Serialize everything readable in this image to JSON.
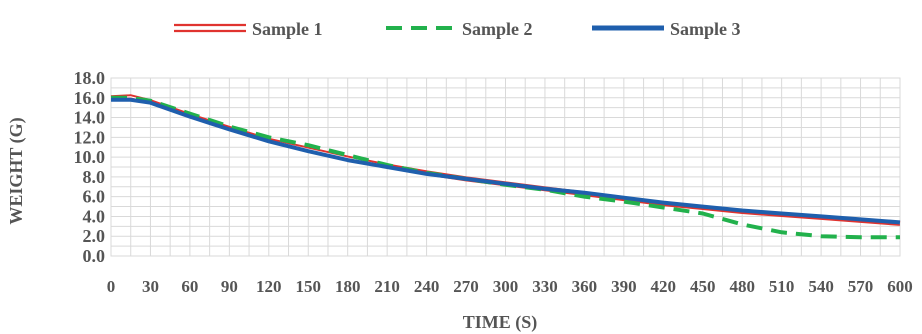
{
  "chart_data": {
    "type": "line",
    "title": "",
    "xlabel": "TIME (S)",
    "ylabel": "WEIGHT (G)",
    "x": [
      0,
      15,
      30,
      60,
      90,
      120,
      150,
      180,
      210,
      240,
      270,
      300,
      330,
      360,
      390,
      420,
      450,
      480,
      510,
      540,
      570,
      600
    ],
    "x_ticks": [
      "0",
      "30",
      "60",
      "90",
      "120",
      "150",
      "180",
      "210",
      "240",
      "270",
      "300",
      "330",
      "360",
      "390",
      "420",
      "450",
      "480",
      "510",
      "540",
      "570",
      "600"
    ],
    "y_ticks": [
      "0.0",
      "2.0",
      "4.0",
      "6.0",
      "8.0",
      "10.0",
      "12.0",
      "14.0",
      "16.0",
      "18.0"
    ],
    "xlim": [
      0,
      600
    ],
    "ylim": [
      0,
      18
    ],
    "grid": true,
    "legend_position": "top",
    "series": [
      {
        "name": "Sample 1",
        "color": "#e0332f",
        "style": "double",
        "values": [
          16.0,
          16.1,
          15.6,
          14.2,
          12.9,
          11.7,
          10.8,
          9.9,
          9.1,
          8.4,
          7.8,
          7.3,
          6.8,
          6.3,
          5.8,
          5.3,
          4.9,
          4.5,
          4.2,
          3.9,
          3.6,
          3.3
        ]
      },
      {
        "name": "Sample 2",
        "color": "#22b14c",
        "style": "dashed",
        "values": [
          16.0,
          16.0,
          15.7,
          14.4,
          13.1,
          12.0,
          11.2,
          10.2,
          9.2,
          8.4,
          7.8,
          7.2,
          6.7,
          6.0,
          5.5,
          4.9,
          4.3,
          3.2,
          2.4,
          2.0,
          1.9,
          1.9
        ]
      },
      {
        "name": "Sample 3",
        "color": "#1f5fad",
        "style": "solid",
        "values": [
          15.8,
          15.8,
          15.5,
          14.1,
          12.8,
          11.6,
          10.6,
          9.7,
          9.0,
          8.3,
          7.8,
          7.3,
          6.8,
          6.4,
          5.9,
          5.4,
          5.0,
          4.6,
          4.3,
          4.0,
          3.7,
          3.4
        ]
      }
    ]
  }
}
